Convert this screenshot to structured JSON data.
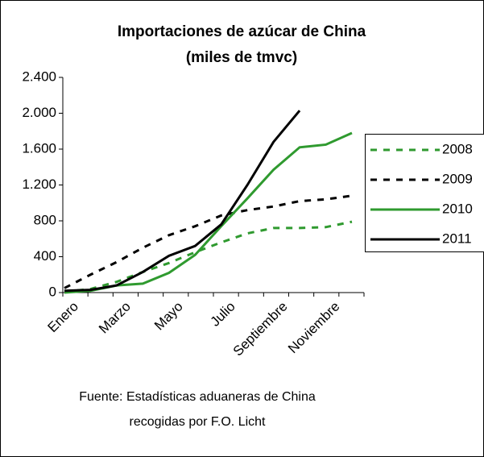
{
  "chart_data": {
    "type": "line",
    "title": "Importaciones de azúcar de China",
    "subtitle": "(miles de tmvc)",
    "title_color": "#2f9a2f",
    "source": [
      "Fuente: Estadísticas aduaneras de China",
      "recogidas por F.O. Licht"
    ],
    "categories": [
      "Enero",
      null,
      "Marzo",
      null,
      "Mayo",
      null,
      "Julio",
      null,
      "Septiembre",
      null,
      "Noviembre",
      null
    ],
    "ylim": [
      0,
      2400
    ],
    "yticks": [
      0,
      400,
      800,
      {
        "value": 1200,
        "label": "1.200"
      },
      {
        "value": 1600,
        "label": "1.600"
      },
      {
        "value": 2000,
        "label": "2.000"
      },
      {
        "value": 2400,
        "label": "2.400"
      }
    ],
    "legend": "right",
    "series": [
      {
        "name": "2008",
        "color": "#2f9a2f",
        "dash": true,
        "values": [
          10,
          40,
          120,
          230,
          330,
          450,
          560,
          660,
          720,
          720,
          730,
          790
        ]
      },
      {
        "name": "2009",
        "color": "#000000",
        "dash": true,
        "values": [
          50,
          200,
          340,
          500,
          640,
          740,
          860,
          920,
          960,
          1020,
          1040,
          1080
        ]
      },
      {
        "name": "2010",
        "color": "#2f9a2f",
        "dash": false,
        "values": [
          0,
          20,
          80,
          100,
          220,
          420,
          740,
          1050,
          1370,
          1620,
          1650,
          1780
        ]
      },
      {
        "name": "2011",
        "color": "#000000",
        "dash": false,
        "values": [
          20,
          30,
          80,
          230,
          410,
          520,
          760,
          1200,
          1680,
          2030,
          null,
          null
        ]
      }
    ]
  }
}
